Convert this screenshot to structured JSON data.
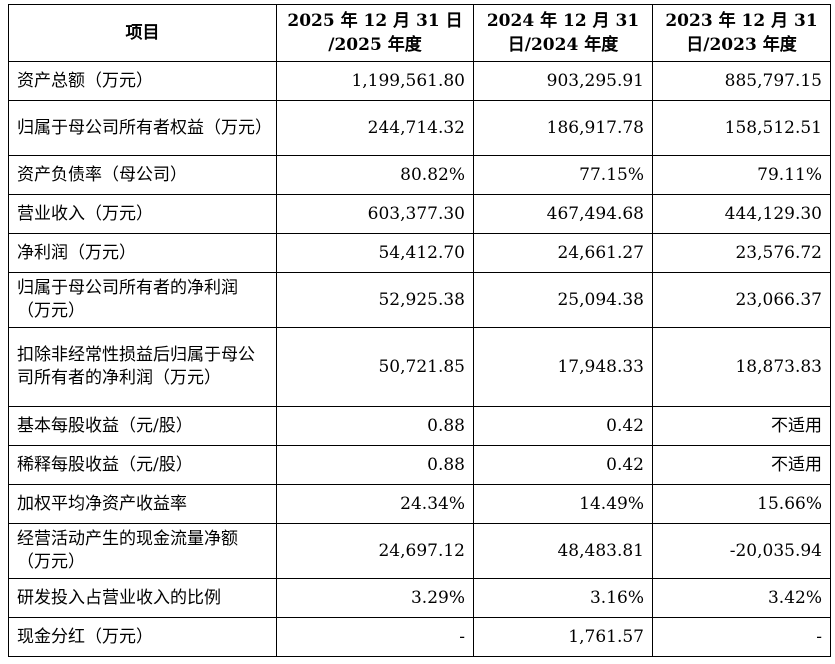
{
  "header": {
    "item": "项目",
    "col1": "2025 年 12 月 31 日 /2025 年度",
    "col1_line1": "2025 年 12 月 31 日",
    "col1_line2": "/2025 年度",
    "col2_line1": "2024 年 12 月 31",
    "col2_line2": "日/2024 年度",
    "col3_line1": "2023 年 12 月 31",
    "col3_line2": "日/2023 年度"
  },
  "rows": [
    {
      "label": "资产总额（万元）",
      "v2025": "1,199,561.80",
      "v2024": "903,295.91",
      "v2023": "885,797.15"
    },
    {
      "label": "归属于母公司所有者权益（万元）",
      "v2025": "244,714.32",
      "v2024": "186,917.78",
      "v2023": "158,512.51"
    },
    {
      "label": "资产负债率（母公司）",
      "v2025": "80.82%",
      "v2024": "77.15%",
      "v2023": "79.11%"
    },
    {
      "label": "营业收入（万元）",
      "v2025": "603,377.30",
      "v2024": "467,494.68",
      "v2023": "444,129.30"
    },
    {
      "label": "净利润（万元）",
      "v2025": "54,412.70",
      "v2024": "24,661.27",
      "v2023": "23,576.72"
    },
    {
      "label": "归属于母公司所有者的净利润（万元）",
      "v2025": "52,925.38",
      "v2024": "25,094.38",
      "v2023": "23,066.37"
    },
    {
      "label": "扣除非经常性损益后归属于母公司所有者的净利润（万元）",
      "v2025": "50,721.85",
      "v2024": "17,948.33",
      "v2023": "18,873.83"
    },
    {
      "label": "基本每股收益（元/股）",
      "v2025": "0.88",
      "v2024": "0.42",
      "v2023": "不适用"
    },
    {
      "label": "稀释每股收益（元/股）",
      "v2025": "0.88",
      "v2024": "0.42",
      "v2023": "不适用"
    },
    {
      "label": "加权平均净资产收益率",
      "v2025": "24.34%",
      "v2024": "14.49%",
      "v2023": "15.66%"
    },
    {
      "label": "经营活动产生的现金流量净额（万元）",
      "v2025": "24,697.12",
      "v2024": "48,483.81",
      "v2023": "-20,035.94"
    },
    {
      "label": "研发投入占营业收入的比例",
      "v2025": "3.29%",
      "v2024": "3.16%",
      "v2023": "3.42%"
    },
    {
      "label": "现金分红（万元）",
      "v2025": "-",
      "v2024": "1,761.57",
      "v2023": "-"
    }
  ]
}
